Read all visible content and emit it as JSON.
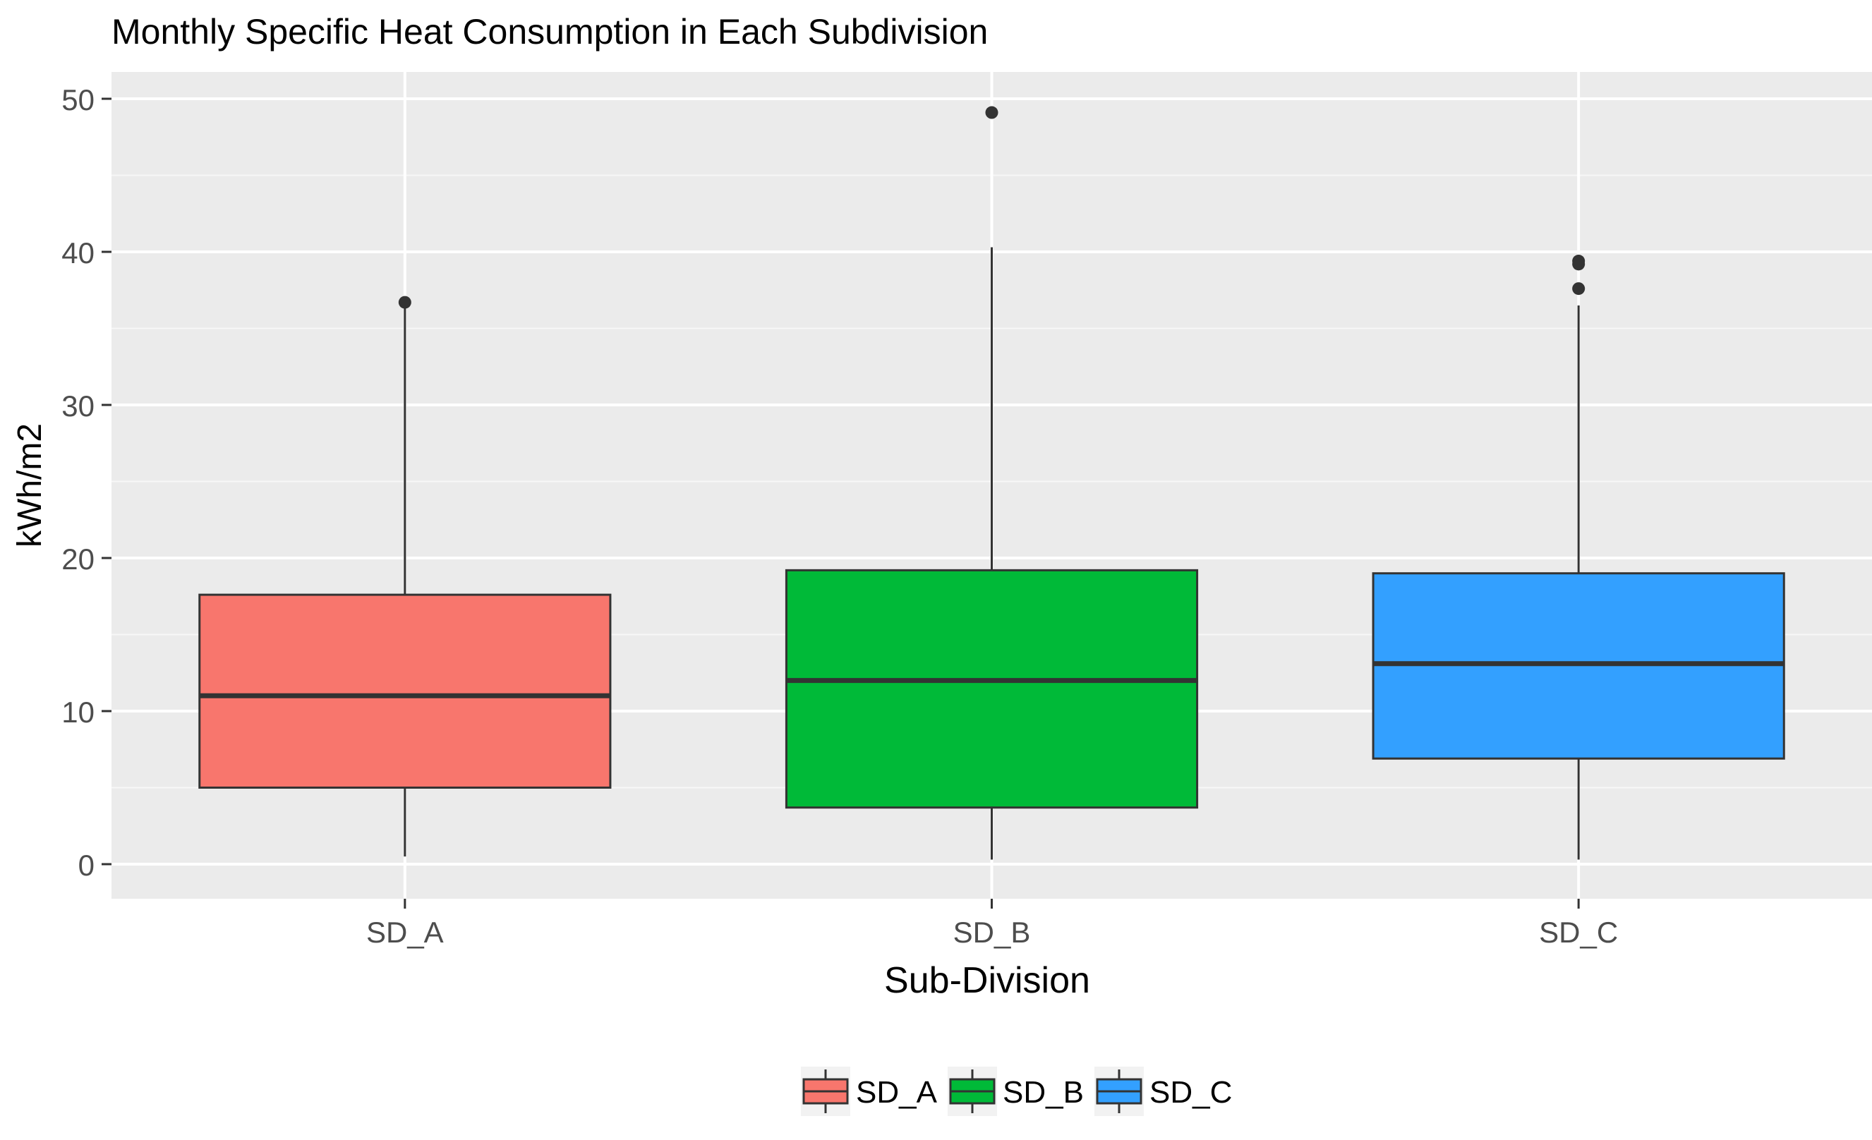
{
  "chart_data": {
    "type": "boxplot",
    "title": "Monthly Specific Heat Consumption in Each Subdivision",
    "xlabel": "Sub-Division",
    "ylabel": "kWh/m2",
    "ylim": [
      -2,
      52
    ],
    "yticks": [
      0,
      10,
      20,
      30,
      40,
      50
    ],
    "ytick_labels": [
      "0",
      "10",
      "20",
      "30",
      "40",
      "50"
    ],
    "grid": true,
    "legend_position": "bottom",
    "categories": [
      "SD_A",
      "SD_B",
      "SD_C"
    ],
    "series": [
      {
        "name": "SD_A",
        "color": "#F8766D",
        "min": 0.5,
        "q1": 5.0,
        "median": 11.0,
        "q3": 17.6,
        "max": 36.3,
        "outliers": [
          36.7
        ]
      },
      {
        "name": "SD_B",
        "color": "#00BA38",
        "min": 0.3,
        "q1": 3.7,
        "median": 12.0,
        "q3": 19.2,
        "max": 40.3,
        "outliers": [
          49.1
        ]
      },
      {
        "name": "SD_C",
        "color": "#33A0FF",
        "min": 0.3,
        "q1": 6.9,
        "median": 13.1,
        "q3": 19.0,
        "max": 36.5,
        "outliers": [
          39.2,
          39.4,
          37.6
        ]
      }
    ],
    "legend": {
      "entries": [
        "SD_A",
        "SD_B",
        "SD_C"
      ]
    }
  }
}
